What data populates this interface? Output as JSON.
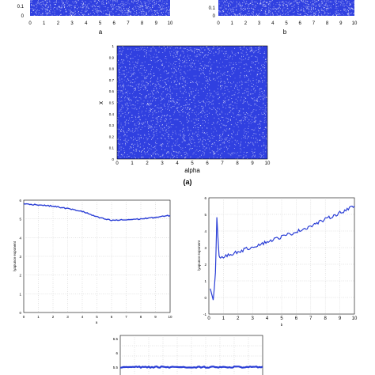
{
  "colors": {
    "series": "#2b3fd6",
    "background": "#3040e0"
  },
  "chart_data": [
    {
      "type": "scatter",
      "xlabel": "a",
      "ylabel": "",
      "xlim": [
        0,
        10
      ],
      "ytick_labels": [
        "0.1",
        "0"
      ],
      "xtick_labels": [
        "0",
        "1",
        "2",
        "3",
        "4",
        "5",
        "6",
        "7",
        "8",
        "9",
        "10"
      ]
    },
    {
      "type": "scatter",
      "xlabel": "b",
      "ylabel": "",
      "xlim": [
        0,
        10
      ],
      "ytick_labels": [
        "0.1",
        "0"
      ],
      "xtick_labels": [
        "0",
        "1",
        "2",
        "3",
        "4",
        "5",
        "6",
        "7",
        "8",
        "9",
        "10"
      ]
    },
    {
      "type": "scatter",
      "xlabel": "alpha",
      "ylabel": "x",
      "xlim": [
        0,
        10
      ],
      "ylim": [
        0,
        1
      ],
      "xtick_labels": [
        "0",
        "1",
        "2",
        "3",
        "4",
        "5",
        "6",
        "7",
        "8",
        "9",
        "10"
      ],
      "ytick_labels": [
        "1",
        "0.9",
        "0.8",
        "0.7",
        "0.6",
        "0.5",
        "0.4",
        "0.3",
        "0.2",
        "0.1",
        "0"
      ],
      "caption": "(a)"
    },
    {
      "type": "line",
      "xlabel": "a",
      "ylabel": "lyapunov exponent",
      "xlim": [
        0,
        10
      ],
      "ylim": [
        0,
        6
      ],
      "xtick_labels": [
        "0",
        "1",
        "2",
        "3",
        "4",
        "5",
        "6",
        "7",
        "8",
        "9",
        "10"
      ],
      "ytick_labels": [
        "6",
        "5",
        "4",
        "3",
        "2",
        "1",
        "0"
      ],
      "series": [
        {
          "x": [
            0,
            1,
            2,
            3,
            4,
            5,
            5.5,
            6,
            7,
            8,
            9,
            10
          ],
          "values": [
            5.8,
            5.75,
            5.68,
            5.55,
            5.4,
            5.1,
            5.0,
            4.92,
            4.95,
            5.0,
            5.08,
            5.18
          ]
        }
      ]
    },
    {
      "type": "line",
      "xlabel": "b",
      "ylabel": "lyapunov exponent",
      "xlim": [
        0,
        10
      ],
      "ylim": [
        -1,
        6
      ],
      "xtick_labels": [
        "0",
        "1",
        "2",
        "3",
        "4",
        "5",
        "6",
        "7",
        "8",
        "9",
        "10"
      ],
      "ytick_labels": [
        "6",
        "5",
        "4",
        "3",
        "2",
        "1",
        "0",
        "-1"
      ],
      "series": [
        {
          "x": [
            0.1,
            0.3,
            0.45,
            0.55,
            0.7,
            0.8,
            1,
            2,
            3,
            4,
            5,
            6,
            7,
            8,
            9,
            10
          ],
          "values": [
            0.5,
            -0.2,
            1.5,
            4.8,
            2.5,
            2.3,
            2.45,
            2.75,
            3.05,
            3.35,
            3.65,
            3.95,
            4.3,
            4.7,
            5.1,
            5.5
          ]
        }
      ]
    },
    {
      "type": "line",
      "xlabel": "",
      "ylabel": "",
      "xlim": [
        0,
        10
      ],
      "ytick_labels": [
        "6.5",
        "6",
        "5.5"
      ],
      "series": [
        {
          "x": [
            0,
            10
          ],
          "values": [
            5.5,
            5.5
          ]
        }
      ]
    }
  ]
}
